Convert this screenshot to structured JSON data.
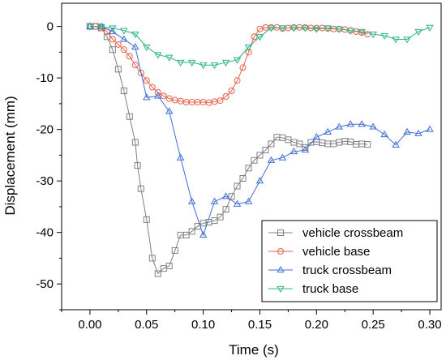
{
  "chart_data": {
    "type": "line",
    "xlabel": "Time (s)",
    "ylabel": "Displacement (mm)",
    "xlim": [
      -0.025,
      0.31
    ],
    "ylim": [
      -55,
      4.5
    ],
    "x_ticks": [
      0.0,
      0.05,
      0.1,
      0.15,
      0.2,
      0.25,
      0.3
    ],
    "x_tick_labels": [
      "0.00",
      "0.05",
      "0.10",
      "0.15",
      "0.20",
      "0.25",
      "0.30"
    ],
    "y_ticks": [
      0,
      -10,
      -20,
      -30,
      -40,
      -50
    ],
    "y_tick_labels": [
      "0",
      "-10",
      "-20",
      "-30",
      "-40",
      "-50"
    ],
    "grid": false,
    "legend_position": "bottom-right",
    "series": [
      {
        "name": "vehicle crossbeam",
        "color": "#808080",
        "marker": "square",
        "x": [
          0.0,
          0.005,
          0.01,
          0.015,
          0.02,
          0.025,
          0.03,
          0.035,
          0.04,
          0.042,
          0.045,
          0.05,
          0.055,
          0.06,
          0.065,
          0.07,
          0.075,
          0.08,
          0.085,
          0.09,
          0.095,
          0.1,
          0.105,
          0.11,
          0.115,
          0.12,
          0.125,
          0.13,
          0.135,
          0.14,
          0.145,
          0.15,
          0.155,
          0.16,
          0.165,
          0.17,
          0.175,
          0.18,
          0.185,
          0.19,
          0.195,
          0.2,
          0.205,
          0.21,
          0.215,
          0.22,
          0.225,
          0.23,
          0.235,
          0.24,
          0.245
        ],
        "y": [
          0.0,
          0.0,
          -0.3,
          -2.0,
          -4.5,
          -8.3,
          -12.5,
          -17.5,
          -22.5,
          -27.0,
          -31.5,
          -37.5,
          -45.0,
          -48.0,
          -47.0,
          -46.5,
          -43.5,
          -40.5,
          -40.5,
          -39.8,
          -38.8,
          -38.2,
          -38.0,
          -37.7,
          -37.0,
          -35.5,
          -33.0,
          -31.0,
          -29.5,
          -27.5,
          -26.0,
          -25.0,
          -24.0,
          -22.8,
          -21.5,
          -21.6,
          -22.0,
          -22.5,
          -22.8,
          -23.5,
          -22.5,
          -22.4,
          -22.6,
          -22.8,
          -22.8,
          -22.5,
          -22.3,
          -22.4,
          -22.9,
          -22.8,
          -22.9
        ]
      },
      {
        "name": "vehicle base",
        "color": "#e8604c",
        "marker": "circle",
        "x": [
          0.0,
          0.005,
          0.01,
          0.015,
          0.02,
          0.025,
          0.03,
          0.035,
          0.04,
          0.045,
          0.05,
          0.055,
          0.06,
          0.065,
          0.07,
          0.075,
          0.08,
          0.085,
          0.09,
          0.095,
          0.1,
          0.105,
          0.11,
          0.115,
          0.12,
          0.125,
          0.13,
          0.135,
          0.14,
          0.145,
          0.15,
          0.155,
          0.16,
          0.165,
          0.17,
          0.175,
          0.18,
          0.185,
          0.19,
          0.195,
          0.2,
          0.205,
          0.21,
          0.215,
          0.22,
          0.225,
          0.23,
          0.235,
          0.24,
          0.245
        ],
        "y": [
          0.0,
          0.0,
          -0.3,
          -1.0,
          -2.5,
          -3.5,
          -4.5,
          -5.8,
          -7.5,
          -9.0,
          -10.5,
          -11.8,
          -12.8,
          -13.5,
          -14.0,
          -14.3,
          -14.5,
          -14.7,
          -14.7,
          -14.7,
          -14.7,
          -14.8,
          -14.6,
          -14.4,
          -13.6,
          -12.5,
          -10.5,
          -8.0,
          -5.0,
          -2.0,
          -0.5,
          -0.2,
          -0.2,
          -0.2,
          -0.4,
          -0.3,
          -0.2,
          -0.2,
          -0.2,
          -0.3,
          -0.3,
          -0.3,
          -0.4,
          -0.5,
          -0.5,
          -0.6,
          -0.8,
          -1.0,
          -1.2,
          -1.5
        ]
      },
      {
        "name": "truck crossbeam",
        "color": "#3d6fd6",
        "marker": "triangle-up",
        "x": [
          0.0,
          0.01,
          0.02,
          0.03,
          0.04,
          0.05,
          0.06,
          0.07,
          0.08,
          0.09,
          0.1,
          0.11,
          0.12,
          0.13,
          0.14,
          0.15,
          0.16,
          0.17,
          0.18,
          0.19,
          0.2,
          0.21,
          0.22,
          0.23,
          0.24,
          0.25,
          0.26,
          0.27,
          0.28,
          0.29,
          0.3
        ],
        "y": [
          0.0,
          0.0,
          -1.0,
          -2.5,
          -4.0,
          -13.8,
          -13.5,
          -16.5,
          -25.5,
          -34.0,
          -40.5,
          -34.0,
          -33.0,
          -34.5,
          -34.0,
          -30.0,
          -26.0,
          -25.5,
          -24.3,
          -24.0,
          -21.5,
          -20.5,
          -19.5,
          -19.0,
          -19.0,
          -19.5,
          -21.0,
          -23.0,
          -20.5,
          -20.8,
          -20.0
        ]
      },
      {
        "name": "truck base",
        "color": "#2fb585",
        "marker": "triangle-down",
        "x": [
          0.0,
          0.01,
          0.02,
          0.03,
          0.04,
          0.05,
          0.06,
          0.07,
          0.08,
          0.09,
          0.1,
          0.11,
          0.12,
          0.13,
          0.14,
          0.15,
          0.16,
          0.17,
          0.18,
          0.19,
          0.2,
          0.21,
          0.22,
          0.23,
          0.24,
          0.25,
          0.26,
          0.27,
          0.28,
          0.29,
          0.3
        ],
        "y": [
          0.0,
          0.0,
          -0.3,
          -0.8,
          -1.5,
          -4.0,
          -5.5,
          -6.0,
          -7.0,
          -7.0,
          -7.5,
          -7.5,
          -7.0,
          -6.5,
          -4.0,
          -2.0,
          -0.3,
          -0.3,
          -0.3,
          -0.3,
          -0.5,
          -0.3,
          -0.5,
          -0.8,
          -1.0,
          -1.5,
          -1.8,
          -2.5,
          -2.5,
          -1.0,
          -0.2
        ]
      }
    ]
  }
}
